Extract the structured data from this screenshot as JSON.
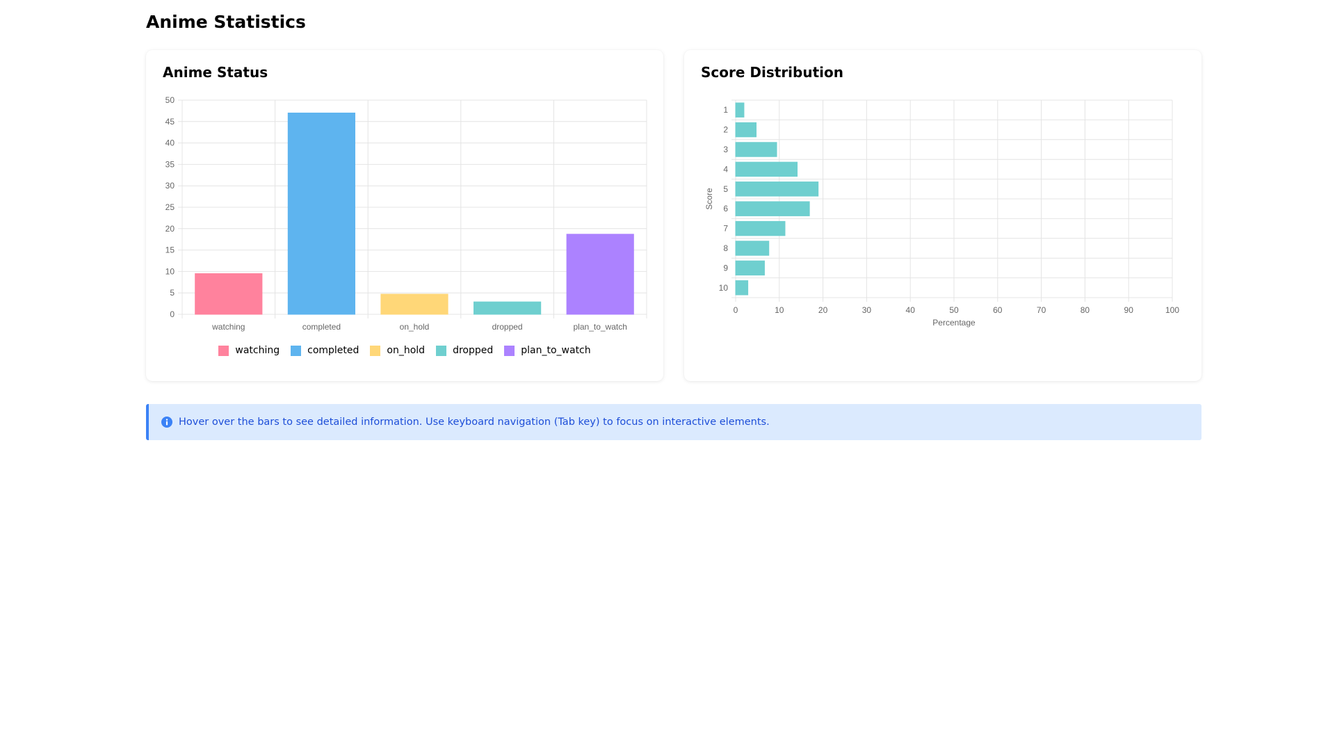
{
  "page": {
    "title": "Anime Statistics"
  },
  "info": {
    "text": "Hover over the bars to see detailed information. Use keyboard navigation (Tab key) to focus on interactive elements.",
    "icon": "info-icon",
    "accent": "#3b82f6"
  },
  "chart_data": [
    {
      "type": "bar",
      "title": "Anime Status",
      "categories": [
        "watching",
        "completed",
        "on_hold",
        "dropped",
        "plan_to_watch"
      ],
      "values": [
        9.5,
        47,
        4.7,
        2.9,
        18.7
      ],
      "colors": [
        "#ff829d",
        "#5eb4ef",
        "#ffd778",
        "#6fcfcf",
        "#ac82ff"
      ],
      "ylim": [
        0,
        50
      ],
      "yticks": [
        0,
        5,
        10,
        15,
        20,
        25,
        30,
        35,
        40,
        45,
        50
      ],
      "grid": true,
      "legend": {
        "position": "bottom",
        "entries": [
          "watching",
          "completed",
          "on_hold",
          "dropped",
          "plan_to_watch"
        ]
      }
    },
    {
      "type": "bar",
      "orientation": "horizontal",
      "title": "Score Distribution",
      "categories": [
        "1",
        "2",
        "3",
        "4",
        "5",
        "6",
        "7",
        "8",
        "9",
        "10"
      ],
      "values": [
        1.9,
        4.7,
        9.4,
        14.1,
        18.9,
        16.9,
        11.3,
        7.6,
        6.6,
        2.8
      ],
      "color": "#6fcfcf",
      "xlabel": "Percentage",
      "ylabel": "Score",
      "xlim": [
        0,
        100
      ],
      "xticks": [
        0,
        10,
        20,
        30,
        40,
        50,
        60,
        70,
        80,
        90,
        100
      ],
      "grid": true
    }
  ]
}
